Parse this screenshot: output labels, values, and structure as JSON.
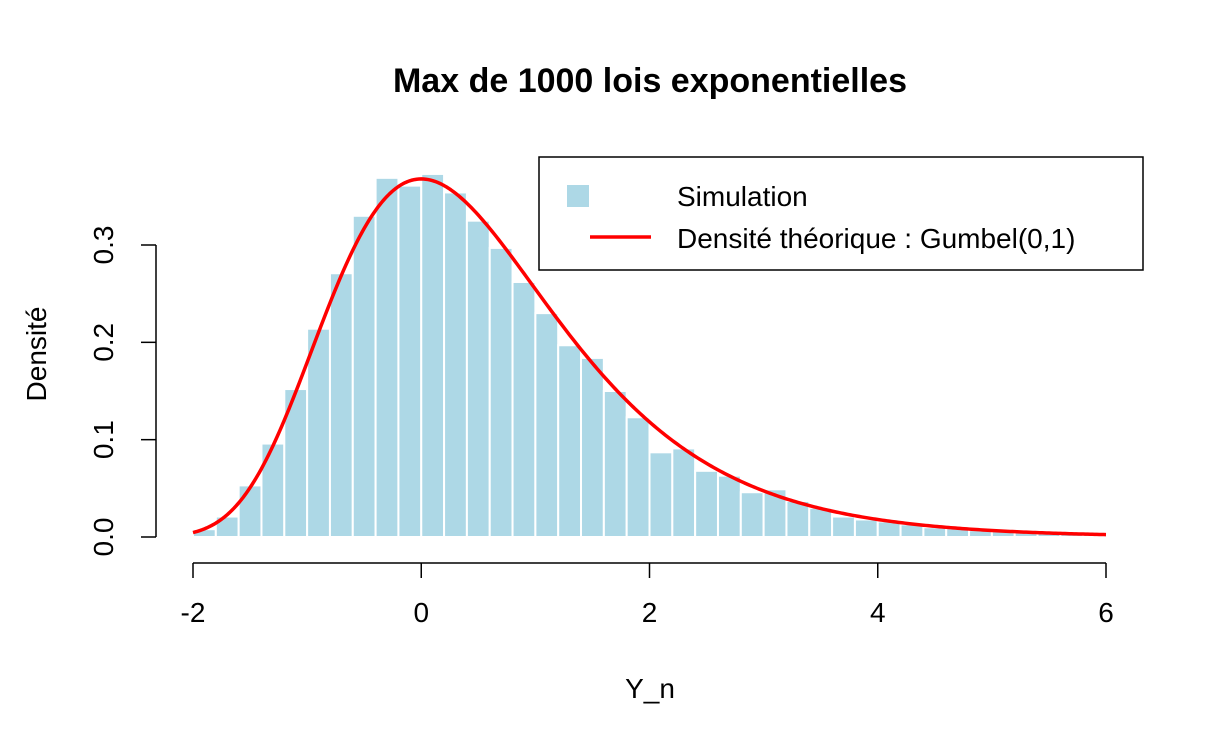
{
  "chart_data": {
    "type": "bar",
    "title": "Max de 1000 lois exponentielles",
    "xlabel": "Y_n",
    "ylabel": "Densité",
    "xlim": [
      -2,
      6
    ],
    "ylim": [
      0,
      0.37
    ],
    "x_ticks": [
      "-2",
      "0",
      "2",
      "4",
      "6"
    ],
    "x_tick_values": [
      -2,
      0,
      2,
      4,
      6
    ],
    "y_ticks": [
      "0.0",
      "0.1",
      "0.2",
      "0.3"
    ],
    "y_tick_values": [
      0.0,
      0.1,
      0.2,
      0.3
    ],
    "bin_width": 0.2,
    "bin_start": -2,
    "series": [
      {
        "name": "Simulation",
        "kind": "histogram",
        "color": "#add8e6",
        "values": [
          0.008,
          0.021,
          0.053,
          0.096,
          0.152,
          0.214,
          0.271,
          0.33,
          0.369,
          0.361,
          0.373,
          0.354,
          0.325,
          0.297,
          0.262,
          0.23,
          0.197,
          0.184,
          0.15,
          0.123,
          0.087,
          0.091,
          0.068,
          0.063,
          0.046,
          0.049,
          0.037,
          0.03,
          0.021,
          0.018,
          0.016,
          0.013,
          0.01,
          0.009,
          0.007,
          0.006,
          0.005,
          0.004,
          0.003,
          0.003
        ]
      },
      {
        "name": "Densité théorique : Gumbel(0,1)",
        "kind": "density",
        "color": "#ff0000",
        "distribution": "Gumbel(0,1)"
      }
    ],
    "legend": {
      "position": "top-right",
      "entries": [
        "Simulation",
        "Densité théorique : Gumbel(0,1)"
      ]
    },
    "grid": false
  }
}
